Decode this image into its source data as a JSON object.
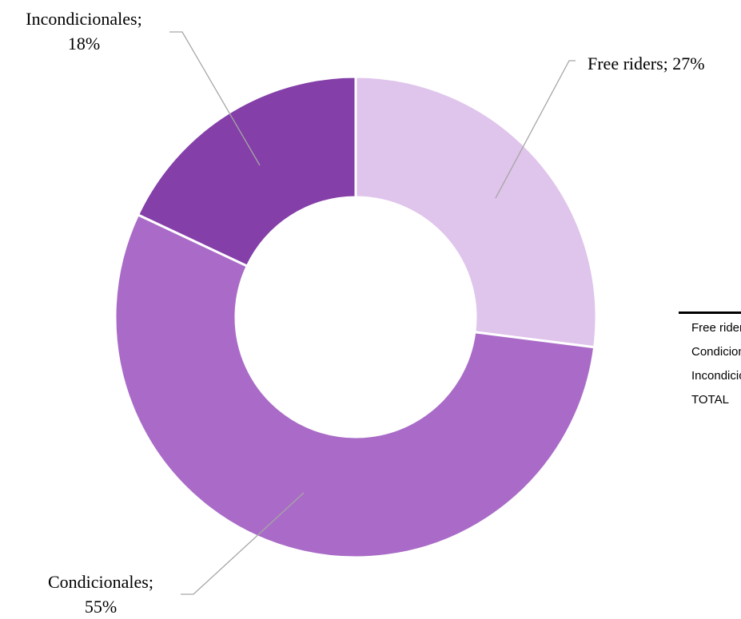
{
  "chart_data": {
    "type": "pie",
    "donut": true,
    "categories": [
      "Free riders",
      "Condicionales",
      "Incondicionales"
    ],
    "values": [
      27,
      55,
      18
    ],
    "colors": [
      "#dfc4eb",
      "#a96bc7",
      "#843fa8"
    ],
    "data_labels": [
      {
        "lines": [
          "Free riders; 27%"
        ]
      },
      {
        "lines": [
          "Condicionales;",
          "55%"
        ]
      },
      {
        "lines": [
          "Incondicionales;",
          "18%"
        ]
      }
    ]
  },
  "side_table": {
    "rows": [
      "Free riders",
      "Condicionales",
      "Incondicionales",
      "TOTAL"
    ]
  }
}
